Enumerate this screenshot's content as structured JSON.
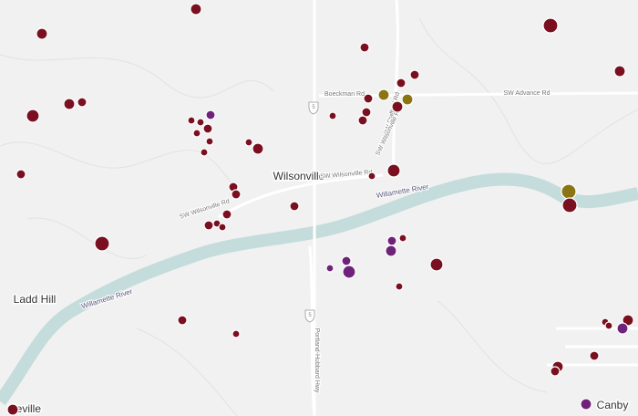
{
  "places": [
    "Wilsonville",
    "Ladd Hill",
    "Canby",
    "tteville"
  ],
  "rivers": [
    "Willamette River",
    "Willamette River"
  ],
  "roads": [
    "Boeckman Rd",
    "SW Advance Rd",
    "SW Stafford Rd",
    "SW Wilsonville Rd",
    "SW Wilsonville Rd",
    "SW Wilsonville Rd",
    "Portland-Hubbard Hwy"
  ],
  "shields": [
    "5",
    "5"
  ]
}
